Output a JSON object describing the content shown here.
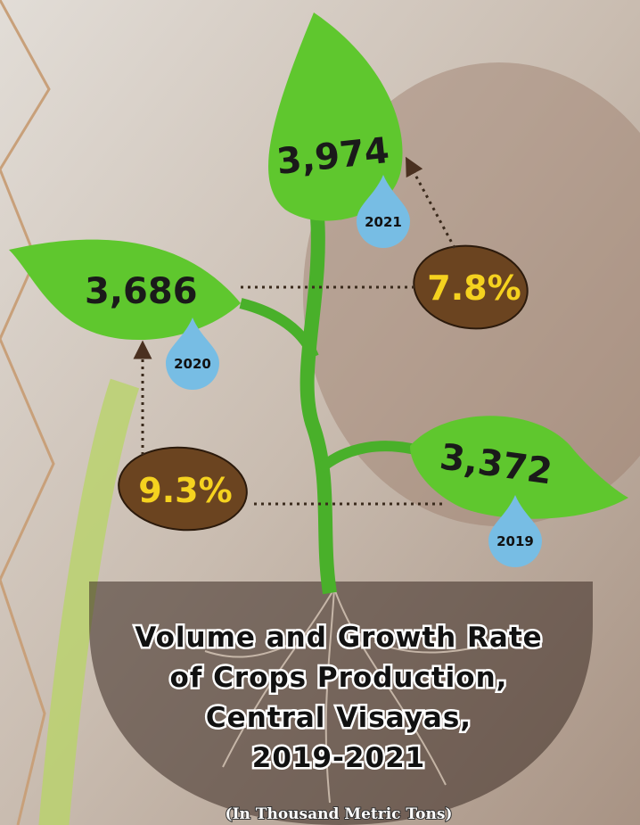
{
  "title_lines": [
    "Volume and Growth Rate",
    "of Crops Production,",
    "Central Visayas,",
    "2019-2021"
  ],
  "subtitle": "(In Thousand Metric Tons)",
  "leaves": [
    {
      "value": "3,974",
      "year": "2021"
    },
    {
      "value": "3,686",
      "year": "2020"
    },
    {
      "value": "3,372",
      "year": "2019"
    }
  ],
  "growth": [
    "7.8%",
    "9.3%"
  ]
}
